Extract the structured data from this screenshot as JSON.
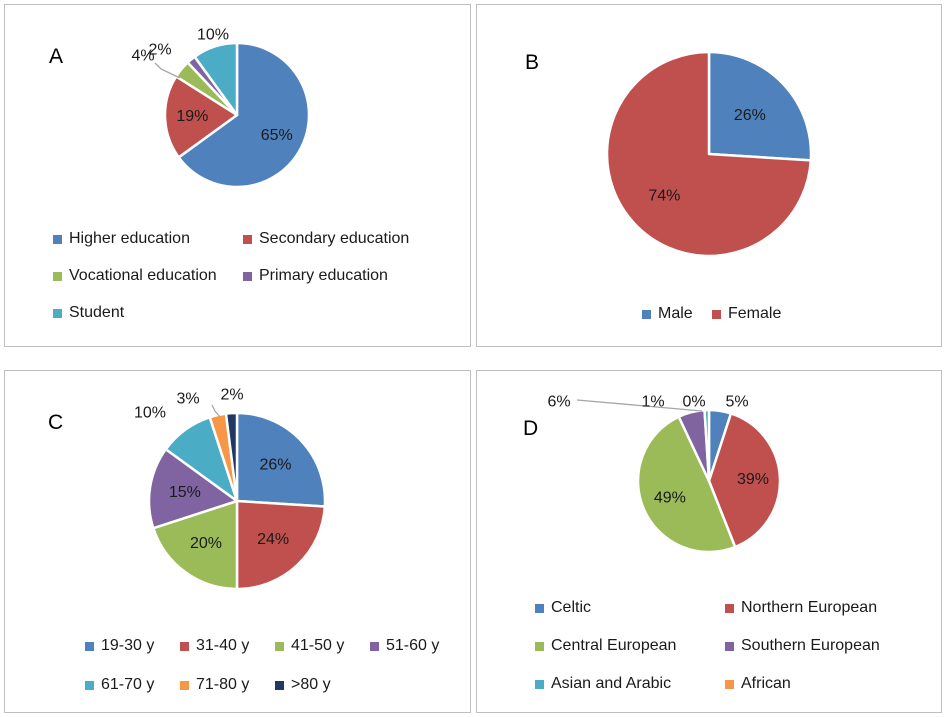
{
  "chart_data": [
    {
      "type": "pie",
      "panel": "A",
      "legend_position": "bottom",
      "slices": [
        {
          "name": "Higher education",
          "value": 65,
          "label": "65%",
          "color": "#4f81bd"
        },
        {
          "name": "Secondary education",
          "value": 19,
          "label": "19%",
          "color": "#c0504d"
        },
        {
          "name": "Vocational education",
          "value": 4,
          "label": "4%",
          "color": "#9bbb59"
        },
        {
          "name": "Primary education",
          "value": 2,
          "label": "2%",
          "color": "#8064a2"
        },
        {
          "name": "Student",
          "value": 10,
          "label": "10%",
          "color": "#4bacc6"
        }
      ]
    },
    {
      "type": "pie",
      "panel": "B",
      "legend_position": "bottom",
      "slices": [
        {
          "name": "Male",
          "value": 26,
          "label": "26%",
          "color": "#4f81bd"
        },
        {
          "name": "Female",
          "value": 74,
          "label": "74%",
          "color": "#c0504d"
        }
      ]
    },
    {
      "type": "pie",
      "panel": "C",
      "legend_position": "bottom",
      "slices": [
        {
          "name": "19-30 y",
          "value": 26,
          "label": "26%",
          "color": "#4f81bd"
        },
        {
          "name": "31-40 y",
          "value": 24,
          "label": "24%",
          "color": "#c0504d"
        },
        {
          "name": "41-50 y",
          "value": 20,
          "label": "20%",
          "color": "#9bbb59"
        },
        {
          "name": "51-60 y",
          "value": 15,
          "label": "15%",
          "color": "#8064a2"
        },
        {
          "name": "61-70 y",
          "value": 10,
          "label": "10%",
          "color": "#4bacc6"
        },
        {
          "name": "71-80 y",
          "value": 3,
          "label": "3%",
          "color": "#f79646"
        },
        {
          "name": ">80 y",
          "value": 2,
          "label": "2%",
          "color": "#1f3864"
        }
      ]
    },
    {
      "type": "pie",
      "panel": "D",
      "legend_position": "bottom",
      "slices": [
        {
          "name": "Celtic",
          "value": 5,
          "label": "5%",
          "color": "#4f81bd"
        },
        {
          "name": "Northern European",
          "value": 39,
          "label": "39%",
          "color": "#c0504d"
        },
        {
          "name": "Central European",
          "value": 49,
          "label": "49%",
          "color": "#9bbb59"
        },
        {
          "name": "Southern European",
          "value": 6,
          "label": "6%",
          "color": "#8064a2"
        },
        {
          "name": "Asian and Arabic",
          "value": 1,
          "label": "1%",
          "color": "#4bacc6"
        },
        {
          "name": "African",
          "value": 0,
          "label": "0%",
          "color": "#f79646"
        }
      ]
    }
  ]
}
